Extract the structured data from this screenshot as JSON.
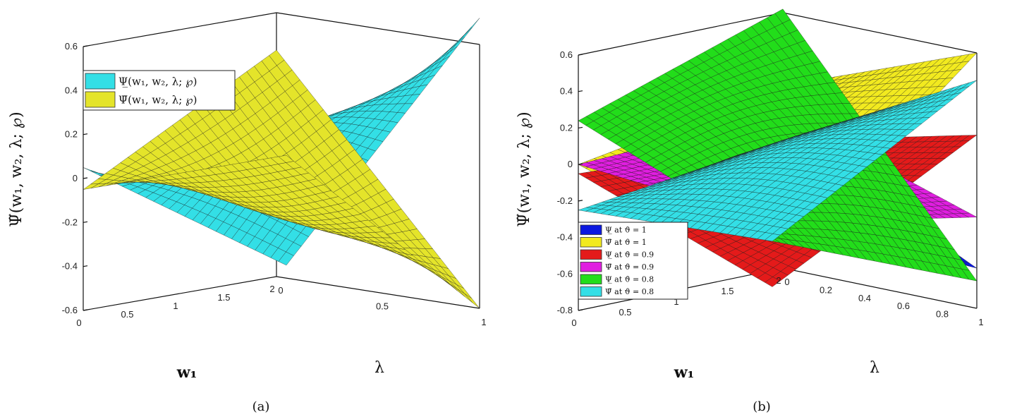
{
  "chart_data": [
    {
      "panel": "(a)",
      "type": "surface3d",
      "xlabel": "w₁",
      "ylabel": "λ",
      "zlabel": "Ψ̃(w₁, w₂, λ; ℘)",
      "x_ticks": [
        "0",
        "0.5",
        "1",
        "1.5",
        "2"
      ],
      "y_ticks": [
        "0",
        "0.5",
        "1"
      ],
      "z_ticks": [
        "-0.6",
        "-0.4",
        "-0.2",
        "0",
        "0.2",
        "0.4",
        "0.6"
      ],
      "xlim": [
        0,
        2
      ],
      "ylim": [
        0,
        1
      ],
      "zlim": [
        -0.6,
        0.6
      ],
      "legend_placement": "upper-left",
      "series": [
        {
          "name": "Ψ̲(w₁, w₂, λ; ℘)",
          "color": "#33dfe6",
          "corners": {
            "w0_l0": 0.05,
            "w2_l0": -0.43,
            "w0_l1": -0.25,
            "w2_l1": 0.72
          },
          "curvature": 0.18
        },
        {
          "name": "Ψ̄(w₁, w₂, λ; ℘)",
          "color": "#e4e42a",
          "corners": {
            "w0_l0": -0.05,
            "w2_l0": 0.43,
            "w0_l1": 0.25,
            "w2_l1": -0.6
          },
          "curvature": -0.18
        }
      ]
    },
    {
      "panel": "(b)",
      "type": "surface3d",
      "xlabel": "w₁",
      "ylabel": "λ",
      "zlabel": "Ψ̃(w₁, w₂, λ; ℘)",
      "x_ticks": [
        "0",
        "0.5",
        "1",
        "1.5",
        "2"
      ],
      "y_ticks": [
        "0",
        "0.2",
        "0.4",
        "0.6",
        "0.8",
        "1"
      ],
      "z_ticks": [
        "-0.8",
        "-0.6",
        "-0.4",
        "-0.2",
        "0",
        "0.2",
        "0.4",
        "0.6"
      ],
      "xlim": [
        0,
        2
      ],
      "ylim": [
        0,
        1
      ],
      "zlim": [
        -0.8,
        0.6
      ],
      "legend_placement": "lower-left",
      "series": [
        {
          "name": "Ψ̲ at ϑ = 1",
          "color": "#0b18e0",
          "corners": {
            "w0_l0": 0.0,
            "w2_l0": -0.05,
            "w0_l1": -0.05,
            "w2_l1": -0.58
          },
          "curvature": 0.05
        },
        {
          "name": "Ψ̄ at ϑ = 1",
          "color": "#f2ea1f",
          "corners": {
            "w0_l0": 0.0,
            "w2_l0": 0.2,
            "w0_l1": -0.35,
            "w2_l1": 0.6
          },
          "curvature": 0.0
        },
        {
          "name": "Ψ̲ at ϑ = 0.9",
          "color": "#e41a1a",
          "corners": {
            "w0_l0": -0.05,
            "w2_l0": -0.1,
            "w0_l1": -0.45,
            "w2_l1": 0.15
          },
          "curvature": -0.05
        },
        {
          "name": "Ψ̄ at ϑ = 0.9",
          "color": "#e01ee0",
          "corners": {
            "w0_l0": 0.0,
            "w2_l0": 0.05,
            "w0_l1": -0.1,
            "w2_l1": -0.3
          },
          "curvature": 0.0
        },
        {
          "name": "Ψ̲ at ϑ = 0.8",
          "color": "#22dd1a",
          "corners": {
            "w0_l0": 0.24,
            "w2_l0": 0.62,
            "w0_l1": -0.2,
            "w2_l1": -0.65
          },
          "curvature": 0.1
        },
        {
          "name": "Ψ̄ at ϑ = 0.8",
          "color": "#33dfe6",
          "corners": {
            "w0_l0": -0.25,
            "w2_l0": -0.1,
            "w0_l1": -0.2,
            "w2_l1": 0.45
          },
          "curvature": 0.08
        }
      ]
    }
  ],
  "captions": [
    "(a)",
    "(b)"
  ]
}
